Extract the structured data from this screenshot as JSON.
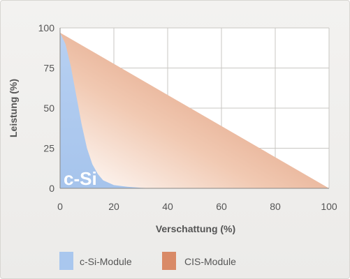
{
  "chart_data": {
    "type": "area",
    "xlabel": "Verschattung (%)",
    "ylabel": "Leistung (%)",
    "xlim": [
      0,
      100
    ],
    "ylim": [
      0,
      100
    ],
    "x_ticks": [
      "0",
      "20",
      "40",
      "60",
      "80",
      "100"
    ],
    "y_ticks": [
      "0",
      "25",
      "50",
      "75",
      "100"
    ],
    "grid": true,
    "legend_position": "bottom",
    "series": [
      {
        "name": "c-Si-Module",
        "label": "c-Si",
        "color": "#a9c7ee",
        "x": [
          0,
          2,
          4,
          6,
          8,
          10,
          12,
          14,
          16,
          20,
          25,
          30,
          35
        ],
        "y": [
          97,
          90,
          76,
          58,
          40,
          25,
          15,
          9,
          5,
          2,
          1,
          0.3,
          0
        ]
      },
      {
        "name": "CIS-Module",
        "label": "CIS",
        "color": "#d98a67",
        "x": [
          0,
          100
        ],
        "y": [
          97,
          0
        ]
      }
    ]
  }
}
